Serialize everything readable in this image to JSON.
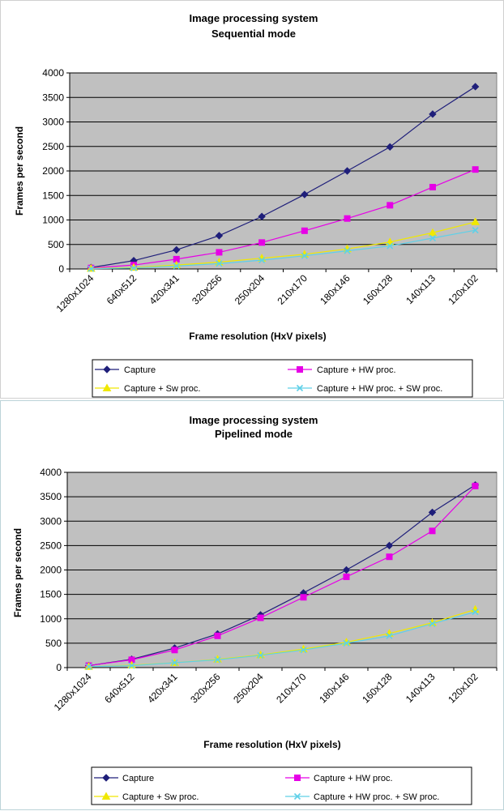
{
  "chart_data": [
    {
      "type": "line",
      "title": "Image processing system",
      "subtitle": "Sequential mode",
      "xlabel": "Frame resolution (HxV pixels)",
      "ylabel": "Frames per second",
      "ylim": [
        0,
        4000
      ],
      "yticks": [
        0,
        500,
        1000,
        1500,
        2000,
        2500,
        3000,
        3500,
        4000
      ],
      "grid": true,
      "categories": [
        "1280x1024",
        "640x512",
        "420x341",
        "320x256",
        "250x204",
        "210x170",
        "180x146",
        "160x128",
        "140x113",
        "120x102"
      ],
      "series": [
        {
          "name": "Capture",
          "color": "#1f1f7a",
          "marker": "diamond",
          "values": [
            30,
            170,
            390,
            680,
            1070,
            1520,
            2000,
            2490,
            3160,
            3720
          ]
        },
        {
          "name": "Capture + HW proc.",
          "color": "#e600e6",
          "marker": "square",
          "values": [
            20,
            80,
            200,
            340,
            540,
            780,
            1030,
            1300,
            1670,
            2030
          ]
        },
        {
          "name": "Capture + Sw proc.",
          "color": "#f0e800",
          "marker": "triangle",
          "values": [
            10,
            30,
            80,
            140,
            220,
            300,
            410,
            550,
            740,
            960
          ]
        },
        {
          "name": "Capture + HW proc. + SW proc.",
          "color": "#5fd0e8",
          "marker": "x",
          "values": [
            5,
            20,
            60,
            110,
            180,
            270,
            370,
            470,
            630,
            790
          ]
        }
      ],
      "legend": {
        "position": "bottom",
        "columns": 2
      }
    },
    {
      "type": "line",
      "title": "Image processing system",
      "subtitle": "Pipelined mode",
      "xlabel": "Frame resolution (HxV pixels)",
      "ylabel": "Frames per second",
      "ylim": [
        0,
        4000
      ],
      "yticks": [
        0,
        500,
        1000,
        1500,
        2000,
        2500,
        3000,
        3500,
        4000
      ],
      "grid": true,
      "categories": [
        "1280x1024",
        "640x512",
        "420x341",
        "320x256",
        "250x204",
        "210x170",
        "180x146",
        "160x128",
        "140x113",
        "120x102"
      ],
      "series": [
        {
          "name": "Capture",
          "color": "#1f1f7a",
          "marker": "diamond",
          "values": [
            40,
            170,
            400,
            690,
            1080,
            1530,
            2000,
            2500,
            3180,
            3740
          ]
        },
        {
          "name": "Capture + HW proc.",
          "color": "#e600e6",
          "marker": "square",
          "values": [
            40,
            160,
            360,
            650,
            1020,
            1440,
            1860,
            2270,
            2800,
            3720
          ]
        },
        {
          "name": "Capture + Sw proc.",
          "color": "#f0e800",
          "marker": "triangle",
          "values": [
            20,
            50,
            100,
            170,
            260,
            380,
            520,
            700,
            920,
            1190
          ]
        },
        {
          "name": "Capture + HW proc. + SW proc.",
          "color": "#5fd0e8",
          "marker": "x",
          "values": [
            20,
            40,
            100,
            160,
            250,
            360,
            500,
            650,
            900,
            1140
          ]
        }
      ],
      "legend": {
        "position": "bottom",
        "columns": 2
      }
    }
  ]
}
